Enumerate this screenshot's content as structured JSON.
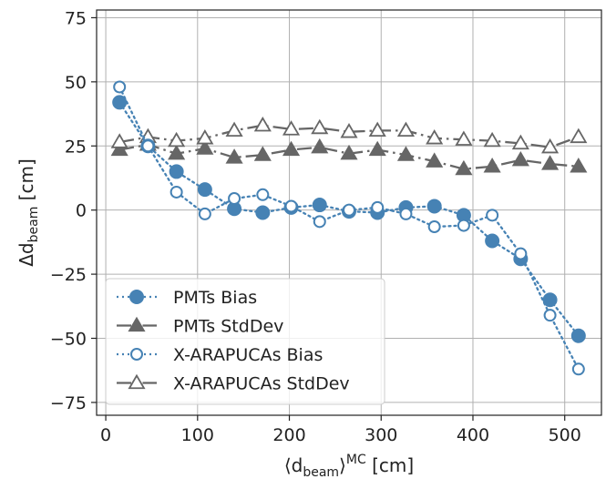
{
  "chart_data": {
    "type": "line",
    "xlabel": {
      "main": "⟨d",
      "sub": "beam",
      "close": "⟩",
      "sup": "MC",
      "unit": " [cm]"
    },
    "ylabel": {
      "main": "Δd",
      "sub": "beam",
      "unit": " [cm]"
    },
    "xlim": [
      -10,
      540
    ],
    "ylim": [
      -80,
      78
    ],
    "xticks": [
      0,
      100,
      200,
      300,
      400,
      500
    ],
    "yticks": [
      -75,
      -50,
      -25,
      0,
      25,
      50,
      75
    ],
    "xtick_labels": [
      "0",
      "100",
      "200",
      "300",
      "400",
      "500"
    ],
    "ytick_labels": [
      "−75",
      "−50",
      "−25",
      "0",
      "25",
      "50",
      "75"
    ],
    "grid": true,
    "legend_position": "lower-left",
    "series": [
      {
        "name": "PMTs Bias",
        "color": "#4682b4",
        "marker": "circle-filled",
        "linestyle": "dotted",
        "x": [
          15,
          46,
          77,
          108,
          140,
          171,
          202,
          233,
          265,
          296,
          327,
          358,
          390,
          421,
          452,
          484,
          515
        ],
        "y": [
          42,
          25,
          15,
          8,
          0.5,
          -1,
          1,
          2,
          -0.5,
          -1,
          1,
          1.5,
          -2,
          -12,
          -19,
          -35,
          -49
        ]
      },
      {
        "name": "PMTs StdDev",
        "color": "#666666",
        "marker": "triangle-filled",
        "linestyle": "dashdot",
        "x": [
          15,
          46,
          77,
          108,
          140,
          171,
          202,
          233,
          265,
          296,
          327,
          358,
          390,
          421,
          452,
          484,
          515
        ],
        "y": [
          23.5,
          25.5,
          22,
          24,
          20.5,
          21.5,
          23.5,
          24.5,
          22,
          23.5,
          21.5,
          19,
          16,
          17,
          19.5,
          18,
          17
        ]
      },
      {
        "name": "X-ARAPUCAs Bias",
        "color": "#4682b4",
        "marker": "circle-open",
        "linestyle": "dotted",
        "x": [
          15,
          46,
          77,
          108,
          140,
          171,
          202,
          233,
          265,
          296,
          327,
          358,
          390,
          421,
          452,
          484,
          515
        ],
        "y": [
          48,
          25,
          7,
          -1.5,
          4.5,
          6,
          1.5,
          -4.5,
          0,
          1,
          -1.5,
          -6.5,
          -6,
          -2,
          -17,
          -41,
          -62
        ]
      },
      {
        "name": "X-ARAPUCAs StdDev",
        "color": "#666666",
        "marker": "triangle-open",
        "linestyle": "dashdot",
        "x": [
          15,
          46,
          77,
          108,
          140,
          171,
          202,
          233,
          265,
          296,
          327,
          358,
          390,
          421,
          452,
          484,
          515
        ],
        "y": [
          26.5,
          28.5,
          27,
          28,
          31,
          33,
          31.5,
          32,
          30.5,
          31,
          31,
          28,
          27.5,
          27,
          26,
          24.5,
          28.5
        ]
      }
    ]
  }
}
